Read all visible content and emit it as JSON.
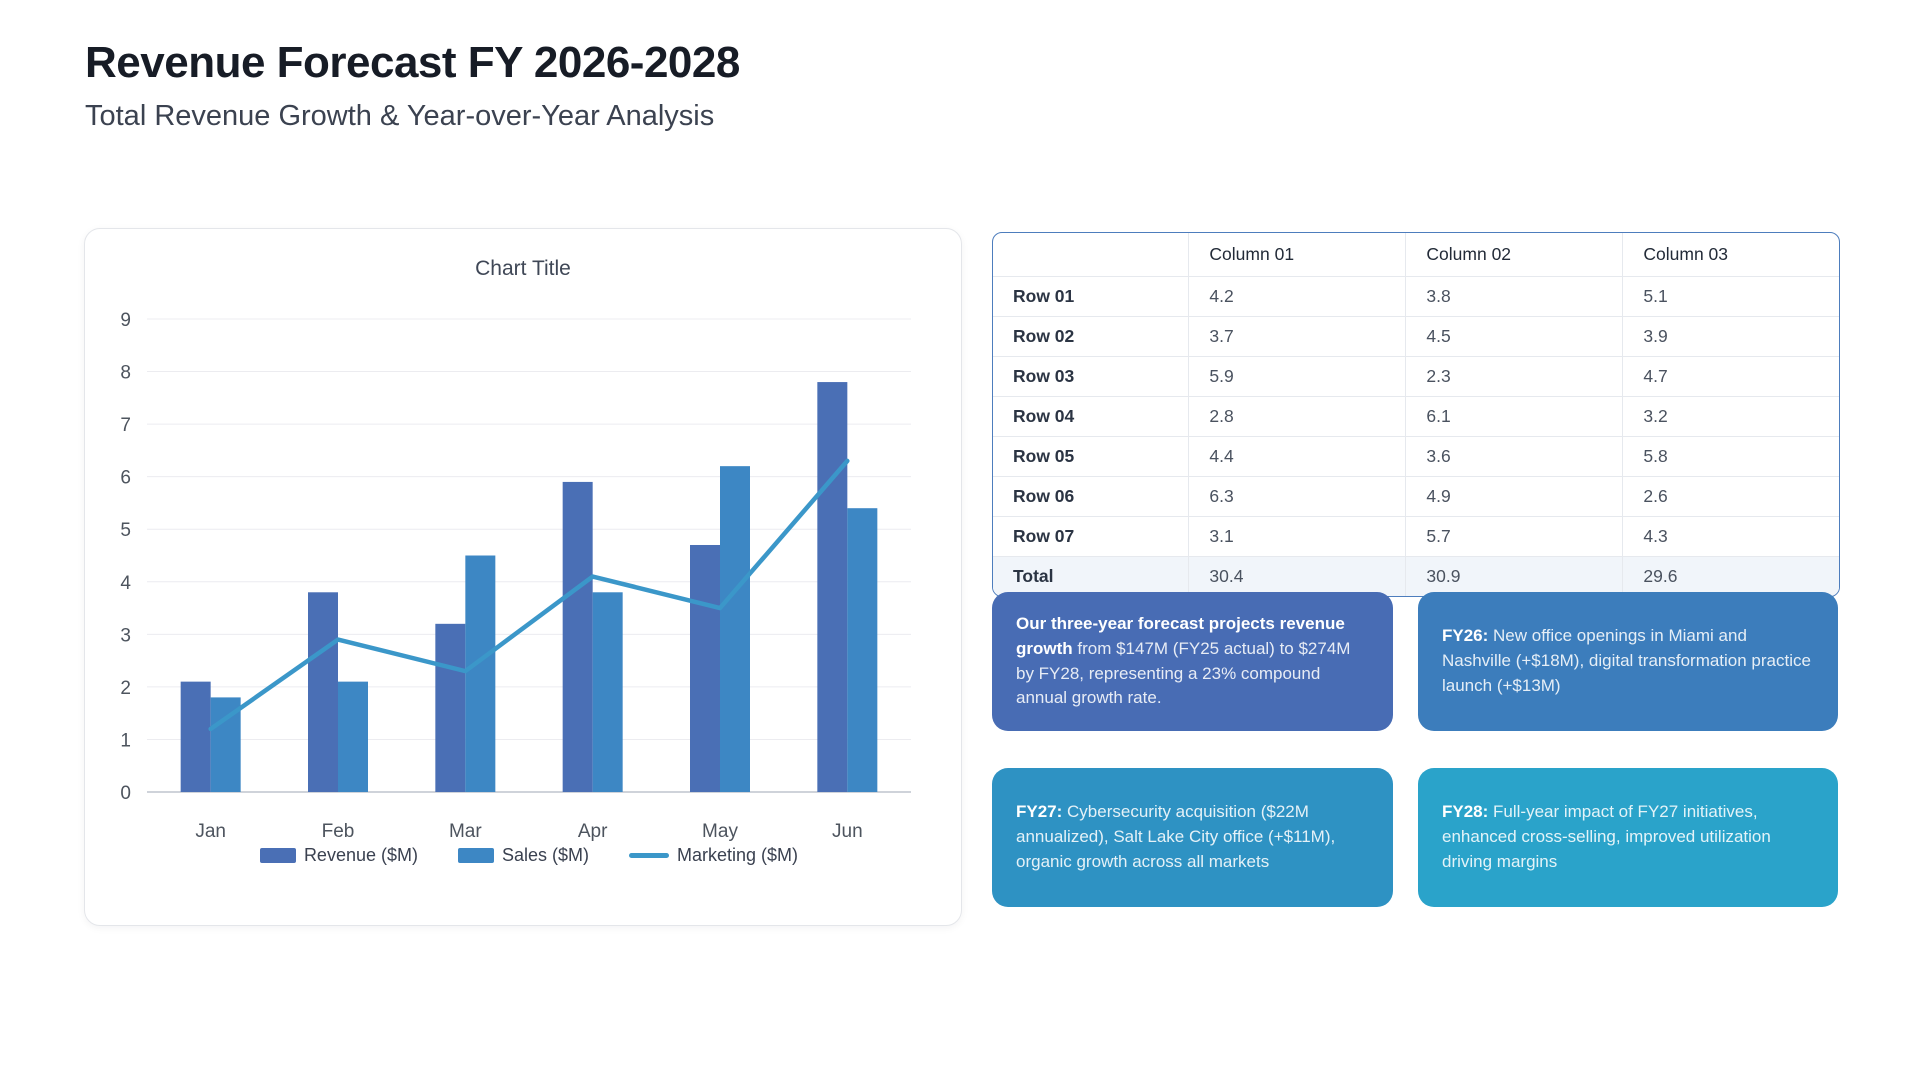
{
  "page": {
    "title": "Revenue Forecast FY 2026-2028",
    "subtitle": "Total Revenue Growth & Year-over-Year Analysis"
  },
  "chart_data": {
    "type": "bar",
    "title": "Chart Title",
    "categories": [
      "Jan",
      "Feb",
      "Mar",
      "Apr",
      "May",
      "Jun"
    ],
    "series": [
      {
        "name": "Revenue ($M)",
        "kind": "bar",
        "color": "#4a6fb5",
        "values": [
          2.1,
          3.8,
          3.2,
          5.9,
          4.7,
          7.8
        ]
      },
      {
        "name": "Sales ($M)",
        "kind": "bar",
        "color": "#3d87c4",
        "values": [
          1.8,
          2.1,
          4.5,
          3.8,
          6.2,
          5.4
        ]
      },
      {
        "name": "Marketing ($M)",
        "kind": "line",
        "color": "#3b97c9",
        "values": [
          1.2,
          2.9,
          2.3,
          4.1,
          3.5,
          6.3
        ]
      }
    ],
    "ylim": [
      0,
      9
    ],
    "ytick_step": 1,
    "grid": true,
    "legend_position": "bottom",
    "colors": {
      "grid": "#ececf0",
      "baseline": "#cfd3da",
      "axis_text": "#4d545e"
    }
  },
  "table": {
    "headers": [
      "",
      "Column 01",
      "Column 02",
      "Column 03"
    ],
    "rows": [
      {
        "label": "Row 01",
        "values": [
          "4.2",
          "3.8",
          "5.1"
        ]
      },
      {
        "label": "Row 02",
        "values": [
          "3.7",
          "4.5",
          "3.9"
        ]
      },
      {
        "label": "Row 03",
        "values": [
          "5.9",
          "2.3",
          "4.7"
        ]
      },
      {
        "label": "Row 04",
        "values": [
          "2.8",
          "6.1",
          "3.2"
        ]
      },
      {
        "label": "Row 05",
        "values": [
          "4.4",
          "3.6",
          "5.8"
        ]
      },
      {
        "label": "Row 06",
        "values": [
          "6.3",
          "4.9",
          "2.6"
        ]
      },
      {
        "label": "Row 07",
        "values": [
          "3.1",
          "5.7",
          "4.3"
        ]
      }
    ],
    "total": {
      "label": "Total",
      "values": [
        "30.4",
        "30.9",
        "29.6"
      ]
    }
  },
  "callouts": [
    {
      "id": "forecast-summary",
      "lead": "Our three-year forecast projects revenue growth",
      "body": " from $147M (FY25 actual) to $274M by FY28, representing a 23% compound annual growth rate.",
      "color": "#486cb4"
    },
    {
      "id": "fy26",
      "lead": "FY26:",
      "body": " New office openings in Miami and Nashville (+$18M), digital transformation practice launch (+$13M)",
      "color": "#3c7dbc"
    },
    {
      "id": "fy27",
      "lead": "FY27:",
      "body": " Cybersecurity acquisition ($22M annualized), Salt Lake City office (+$11M), organic growth across all markets",
      "color": "#2e92c3"
    },
    {
      "id": "fy28",
      "lead": "FY28:",
      "body": " Full-year impact of FY27 initiatives, enhanced cross-selling, improved utilization driving margins",
      "color": "#2aa3ca"
    }
  ]
}
